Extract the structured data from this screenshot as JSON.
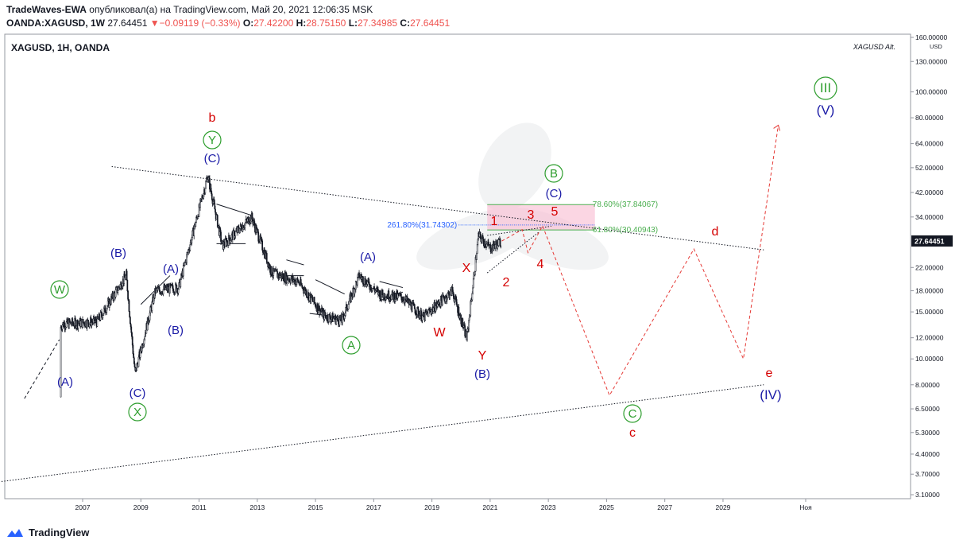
{
  "header": {
    "author": "TradeWaves-EWA",
    "published": "опубликовал(а) на TradingView.com, Май 20, 2021 12:06:35 MSK",
    "symbol": "OANDA:XAGUSD, 1W",
    "last": "27.64451",
    "arrow": "▼",
    "change": "−0.09119 (−0.33%)",
    "o_label": "O:",
    "o_value": "27.42200",
    "h_label": "H:",
    "h_value": "28.75150",
    "l_label": "L:",
    "l_value": "27.34985",
    "c_label": "C:",
    "c_value": "27.64451"
  },
  "pane": {
    "title": "XAGUSD, 1H, OANDA",
    "alt": "XAGUSD Alt."
  },
  "footer": {
    "brand": "TradingView"
  },
  "colors": {
    "red": "#d50000",
    "blue": "#1a1aa6",
    "green": "#2e9e2e",
    "up": "#26a69a",
    "down": "#ef5350"
  },
  "chart_data": {
    "type": "line",
    "scale": "log",
    "x": [
      2005.0,
      2006.3,
      2007.5,
      2008.5,
      2008.8,
      2009.5,
      2010.3,
      2011.3,
      2011.8,
      2012.8,
      2013.5,
      2014.4,
      2015.3,
      2015.9,
      2016.5,
      2017.2,
      2018.0,
      2018.7,
      2019.7,
      2020.2,
      2020.6,
      2021.0,
      2021.4
    ],
    "series": [
      {
        "name": "XAGUSD",
        "values": [
          7.2,
          13.5,
          13.8,
          20.5,
          8.8,
          18.0,
          18.5,
          48.5,
          26.5,
          34.0,
          21.0,
          19.5,
          14.5,
          13.9,
          20.5,
          17.5,
          17.0,
          14.3,
          18.0,
          11.9,
          29.0,
          26.0,
          27.64
        ]
      }
    ],
    "price_ticks": [
      "160.00000",
      "130.00000",
      "100.00000",
      "80.00000",
      "64.00000",
      "52.00000",
      "42.00000",
      "34.00000",
      "27.64451",
      "22.00000",
      "18.00000",
      "15.00000",
      "12.00000",
      "10.00000",
      "8.00000",
      "6.50000",
      "5.30000",
      "4.40000",
      "3.70000",
      "3.10000"
    ],
    "price_unit": "USD",
    "time_ticks": [
      "2007",
      "2009",
      "2011",
      "2013",
      "2015",
      "2017",
      "2019",
      "2021",
      "2023",
      "2025",
      "2027",
      "2029",
      "Ноя"
    ],
    "last_price_label": "27.64451",
    "fib_levels": [
      {
        "label": "78.60%(37.84067)",
        "value": 37.84067
      },
      {
        "label": "61.80%(30.40943)",
        "value": 30.40943
      },
      {
        "label": "261.80%(31.74302)",
        "value": 31.74302
      }
    ],
    "projection": [
      {
        "x": 2021.4,
        "y": 27.64
      },
      {
        "x": 2022.1,
        "y": 30.5
      },
      {
        "x": 2022.3,
        "y": 25.0
      },
      {
        "x": 2022.8,
        "y": 31.5
      },
      {
        "x": 2025.1,
        "y": 7.3
      },
      {
        "x": 2028.0,
        "y": 25.8
      },
      {
        "x": 2029.7,
        "y": 10.0
      },
      {
        "x": 2030.9,
        "y": 75.0
      }
    ],
    "annotations": [
      {
        "text": "b",
        "color": "red"
      },
      {
        "text": "Y",
        "color": "green",
        "circle": true
      },
      {
        "text": "(C)",
        "color": "blue"
      },
      {
        "text": "(B)",
        "color": "blue"
      },
      {
        "text": "(A)",
        "color": "blue"
      },
      {
        "text": "(B)",
        "color": "blue"
      },
      {
        "text": "W",
        "color": "green",
        "circle": true
      },
      {
        "text": "(A)",
        "color": "blue"
      },
      {
        "text": "(C)",
        "color": "blue"
      },
      {
        "text": "X",
        "color": "green",
        "circle": true
      },
      {
        "text": "(A)",
        "color": "blue"
      },
      {
        "text": "A",
        "color": "green",
        "circle": true
      },
      {
        "text": "W",
        "color": "red"
      },
      {
        "text": "X",
        "color": "red"
      },
      {
        "text": "Y",
        "color": "red"
      },
      {
        "text": "(B)",
        "color": "blue"
      },
      {
        "text": "1",
        "color": "red"
      },
      {
        "text": "2",
        "color": "red"
      },
      {
        "text": "3",
        "color": "red"
      },
      {
        "text": "4",
        "color": "red"
      },
      {
        "text": "5",
        "color": "red"
      },
      {
        "text": "B",
        "color": "green",
        "circle": true
      },
      {
        "text": "(C)",
        "color": "blue"
      },
      {
        "text": "C",
        "color": "green",
        "circle": true
      },
      {
        "text": "c",
        "color": "red"
      },
      {
        "text": "d",
        "color": "red"
      },
      {
        "text": "e",
        "color": "red"
      },
      {
        "text": "(IV)",
        "color": "blue"
      },
      {
        "text": "III",
        "color": "green",
        "circle": true
      },
      {
        "text": "(V)",
        "color": "blue"
      }
    ]
  }
}
